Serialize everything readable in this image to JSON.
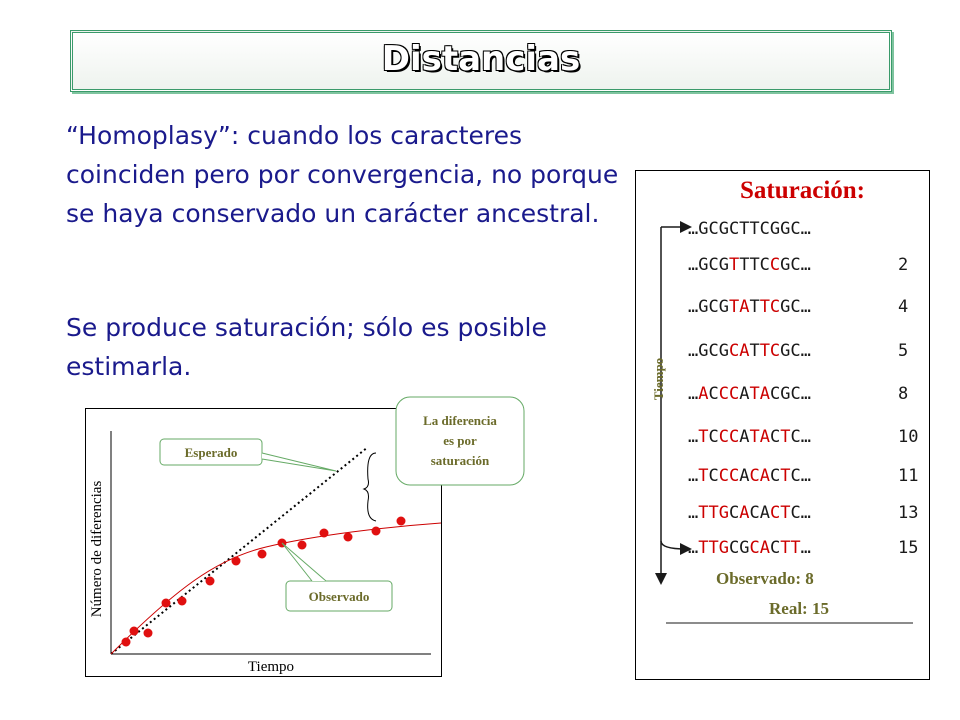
{
  "title": "Distancias",
  "paragraphs": [
    "“Homoplasy”: cuando los caracteres coinciden pero por convergencia, no porque se haya conservado un carácter ancestral.",
    "Se produce saturación; sólo es posible estimarla."
  ],
  "panel": {
    "title": "Saturación:",
    "axis_label": "Tiempo",
    "rows": [
      {
        "segments": [
          {
            "text": "…GCGCTTCGGC…",
            "color": "black"
          }
        ],
        "count": null
      },
      {
        "segments": [
          {
            "text": "…GCG",
            "color": "black"
          },
          {
            "text": "T",
            "color": "red"
          },
          {
            "text": "TTC",
            "color": "black"
          },
          {
            "text": "C",
            "color": "red"
          },
          {
            "text": "GC…",
            "color": "black"
          }
        ],
        "count": 2
      },
      {
        "segments": [
          {
            "text": "…GCG",
            "color": "black"
          },
          {
            "text": "TA",
            "color": "red"
          },
          {
            "text": "T",
            "color": "black"
          },
          {
            "text": "TC",
            "color": "red"
          },
          {
            "text": "GC…",
            "color": "black"
          }
        ],
        "count": 4
      },
      {
        "segments": [
          {
            "text": "…GCG",
            "color": "black"
          },
          {
            "text": "CA",
            "color": "red"
          },
          {
            "text": "T",
            "color": "black"
          },
          {
            "text": "TC",
            "color": "red"
          },
          {
            "text": "GC…",
            "color": "black"
          }
        ],
        "count": 5
      },
      {
        "segments": [
          {
            "text": "…",
            "color": "black"
          },
          {
            "text": "A",
            "color": "red"
          },
          {
            "text": "C",
            "color": "black"
          },
          {
            "text": "CC",
            "color": "red"
          },
          {
            "text": "A",
            "color": "black"
          },
          {
            "text": "TA",
            "color": "red"
          },
          {
            "text": "C",
            "color": "black"
          },
          {
            "text": "GC…",
            "color": "black"
          }
        ],
        "count": 8
      },
      {
        "segments": [
          {
            "text": "…",
            "color": "black"
          },
          {
            "text": "T",
            "color": "red"
          },
          {
            "text": "C",
            "color": "black"
          },
          {
            "text": "CC",
            "color": "red"
          },
          {
            "text": "A",
            "color": "black"
          },
          {
            "text": "TA",
            "color": "red"
          },
          {
            "text": "C",
            "color": "black"
          },
          {
            "text": "T",
            "color": "red"
          },
          {
            "text": "C…",
            "color": "black"
          }
        ],
        "count": 10
      },
      {
        "segments": [
          {
            "text": "…",
            "color": "black"
          },
          {
            "text": "T",
            "color": "red"
          },
          {
            "text": "C",
            "color": "black"
          },
          {
            "text": "CC",
            "color": "red"
          },
          {
            "text": "A",
            "color": "black"
          },
          {
            "text": "CA",
            "color": "red"
          },
          {
            "text": "C",
            "color": "black"
          },
          {
            "text": "T",
            "color": "red"
          },
          {
            "text": "C…",
            "color": "black"
          }
        ],
        "count": 11
      },
      {
        "segments": [
          {
            "text": "…",
            "color": "black"
          },
          {
            "text": "TTG",
            "color": "red"
          },
          {
            "text": "C",
            "color": "black"
          },
          {
            "text": "A",
            "color": "red"
          },
          {
            "text": "CA",
            "color": "black"
          },
          {
            "text": "CT",
            "color": "red"
          },
          {
            "text": "C…",
            "color": "black"
          }
        ],
        "count": 13
      },
      {
        "segments": [
          {
            "text": "…",
            "color": "black"
          },
          {
            "text": "TTG",
            "color": "red"
          },
          {
            "text": "CG",
            "color": "black"
          },
          {
            "text": "CA",
            "color": "red"
          },
          {
            "text": "C",
            "color": "black"
          },
          {
            "text": "TT",
            "color": "red"
          },
          {
            "text": "…",
            "color": "black"
          }
        ],
        "count": 15
      }
    ],
    "observed": "Observado: 8",
    "real": "Real: 15"
  },
  "chart": {
    "y_label": "Número de diferencias",
    "x_label": "Tiempo",
    "expected": "Esperado",
    "observed": "Observado",
    "note": [
      "La diferencia",
      "es por",
      "saturación"
    ]
  }
}
